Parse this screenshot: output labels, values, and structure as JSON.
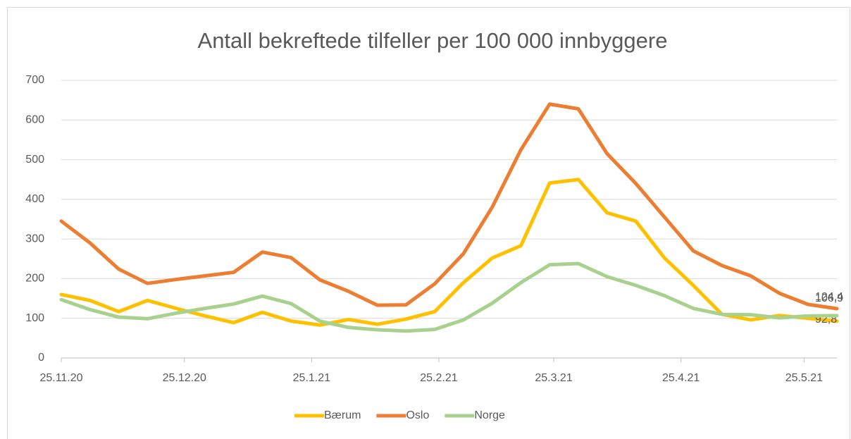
{
  "chart_data": {
    "type": "line",
    "title": "Antall bekreftede tilfeller per 100 000 innbyggere",
    "x": [
      0,
      7,
      14,
      21,
      28,
      35,
      42,
      49,
      56,
      63,
      70,
      77,
      84,
      91,
      98,
      105,
      112,
      119,
      126,
      133,
      140,
      147,
      154,
      161,
      168,
      175,
      182,
      189
    ],
    "xlim": [
      0,
      189
    ],
    "xticks": [
      {
        "value": 0,
        "label": "25.11.20"
      },
      {
        "value": 30,
        "label": "25.12.20"
      },
      {
        "value": 61,
        "label": "25.1.21"
      },
      {
        "value": 92,
        "label": "25.2.21"
      },
      {
        "value": 120,
        "label": "25.3.21"
      },
      {
        "value": 151,
        "label": "25.4.21"
      },
      {
        "value": 181,
        "label": "25.5.21"
      }
    ],
    "ylim": [
      0,
      700
    ],
    "yticks": [
      0,
      100,
      200,
      300,
      400,
      500,
      600,
      700
    ],
    "grid": true,
    "legend": "bottom",
    "series": [
      {
        "name": "Bærum",
        "color": "#ffc000",
        "values": [
          160,
          145,
          117,
          145,
          125,
          106,
          89,
          115,
          93,
          83,
          97,
          85,
          98,
          117,
          190,
          252,
          283,
          441,
          450,
          366,
          345,
          252,
          183,
          110,
          96,
          107,
          100,
          92.8
        ],
        "value_labels": [
          null,
          null,
          null,
          null,
          null,
          null,
          null,
          null,
          null,
          null,
          null,
          null,
          null,
          null,
          null,
          null,
          null,
          null,
          null,
          null,
          null,
          null,
          null,
          null,
          null,
          null,
          null,
          "92,8"
        ]
      },
      {
        "name": "Oslo",
        "color": "#ed7d31",
        "values": [
          345,
          290,
          224,
          188,
          198,
          207,
          216,
          267,
          253,
          197,
          168,
          133,
          134,
          187,
          263,
          380,
          525,
          640,
          628,
          515,
          440,
          355,
          270,
          233,
          207,
          163,
          135,
          124.4
        ],
        "value_labels": [
          null,
          null,
          null,
          null,
          null,
          null,
          null,
          null,
          null,
          null,
          null,
          null,
          null,
          null,
          null,
          null,
          null,
          null,
          null,
          null,
          null,
          null,
          null,
          null,
          null,
          null,
          null,
          "124,4"
        ]
      },
      {
        "name": "Norge",
        "color": "#a9d18e",
        "values": [
          147,
          122,
          103,
          99,
          113,
          125,
          136,
          156,
          137,
          93,
          77,
          71,
          68,
          72,
          96,
          138,
          190,
          235,
          238,
          205,
          183,
          157,
          125,
          110,
          109,
          101,
          106,
          106.9
        ],
        "value_labels": [
          null,
          null,
          null,
          null,
          null,
          null,
          null,
          null,
          null,
          null,
          null,
          null,
          null,
          null,
          null,
          null,
          null,
          null,
          null,
          null,
          null,
          null,
          null,
          null,
          null,
          null,
          null,
          "106,9"
        ]
      }
    ]
  }
}
